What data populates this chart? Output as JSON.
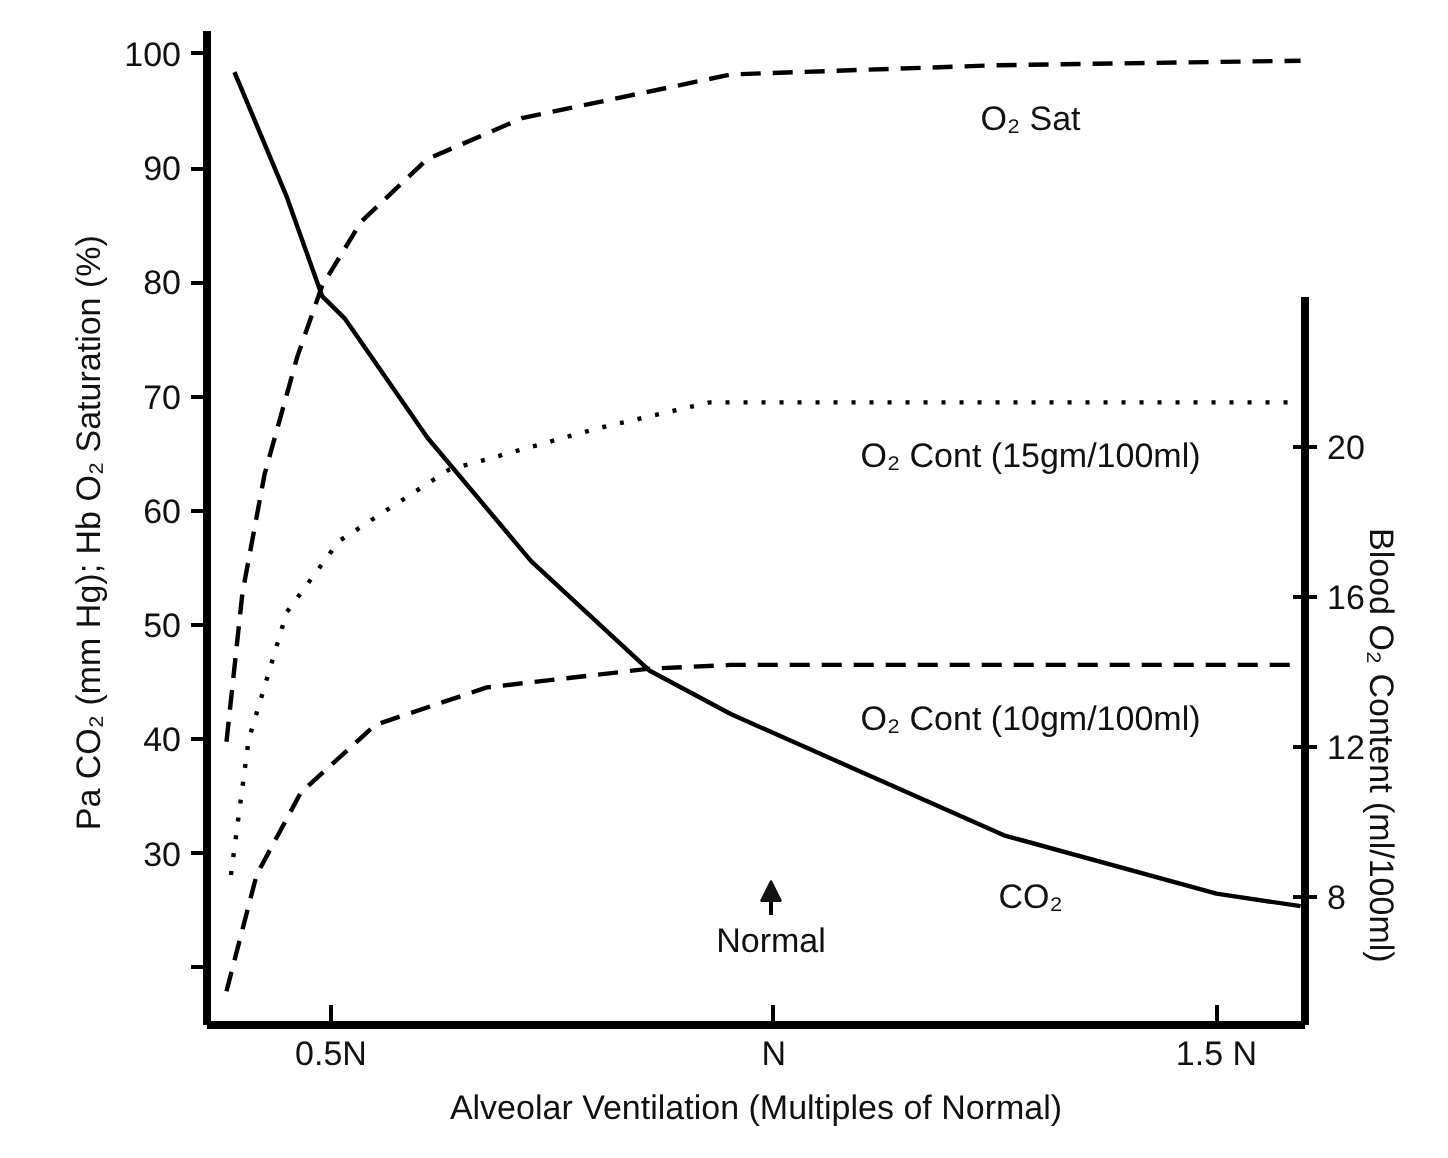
{
  "chart_data": {
    "type": "line",
    "xlabel": "Alveolar Ventilation (Multiples of Normal)",
    "ylabel": "Pa CO₂ (mm Hg); Hb O₂ Saturation  (%)",
    "y2label": "Blood O₂ Content (ml/100ml)",
    "xlim": [
      0.36,
      1.6
    ],
    "ylim": [
      15,
      102
    ],
    "xticks": [
      {
        "value": 0.5,
        "label": "0.5N"
      },
      {
        "value": 1,
        "label": "N"
      },
      {
        "value": 1.5,
        "label": "1.5 N"
      }
    ],
    "yticks": [
      {
        "value": 20,
        "label": null
      },
      30,
      40,
      50,
      60,
      70,
      80,
      90,
      100
    ],
    "y2lim": [
      4.6,
      31.1
    ],
    "y2ticks": [
      8,
      12,
      16,
      20
    ],
    "grid": false,
    "marker": "none",
    "series": [
      {
        "name": "O₂ Sat",
        "color": "#000000",
        "line_style": "dashed",
        "x": [
          0.382,
          0.4,
          0.425,
          0.462,
          0.49,
          0.534,
          0.609,
          0.717,
          0.952,
          1.25,
          1.595
        ],
        "values": [
          39.8,
          52.8,
          63.2,
          73.5,
          79.7,
          85.3,
          90.8,
          94.4,
          98.2,
          99,
          99.4
        ]
      },
      {
        "name": "O₂ Cont (15gm/100ml)",
        "axis": "y2",
        "color": "#000000",
        "line_style": "dotted",
        "x": [
          0.387,
          0.407,
          0.45,
          0.509,
          0.633,
          0.8,
          0.928,
          1.595
        ],
        "values": [
          8.6,
          12.2,
          15.6,
          17.5,
          19.4,
          20.5,
          21.2,
          21.2
        ]
      },
      {
        "name": "O₂ Cont (10gm/100ml)",
        "axis": "y2",
        "color": "#000000",
        "line_style": "dashed",
        "x": [
          0.382,
          0.416,
          0.466,
          0.55,
          0.676,
          0.86,
          0.952,
          1.595
        ],
        "values": [
          5.5,
          8.6,
          10.8,
          12.6,
          13.6,
          14.1,
          14.2,
          14.2
        ]
      },
      {
        "name": "CO₂",
        "color": "#000000",
        "line_style": "solid",
        "x": [
          0.391,
          0.45,
          0.49,
          0.516,
          0.609,
          0.726,
          0.86,
          0.952,
          1.26,
          1.5,
          1.595
        ],
        "values": [
          98.4,
          87.5,
          78.8,
          76.8,
          66.4,
          55.6,
          46,
          42.2,
          31.6,
          26.5,
          25.4
        ]
      }
    ],
    "annotations": [
      "Normal"
    ]
  }
}
